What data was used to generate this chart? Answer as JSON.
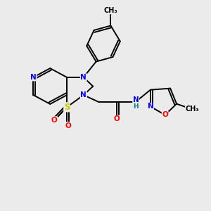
{
  "bg_color": "#ebebeb",
  "atom_colors": {
    "C": "#000000",
    "N": "#0000ff",
    "O": "#ff0000",
    "S": "#cccc00",
    "H": "#008080"
  },
  "bond_color": "#000000",
  "bond_width": 1.4,
  "figsize": [
    3.0,
    3.0
  ],
  "dpi": 100,
  "xlim": [
    0,
    10
  ],
  "ylim": [
    0,
    10
  ]
}
